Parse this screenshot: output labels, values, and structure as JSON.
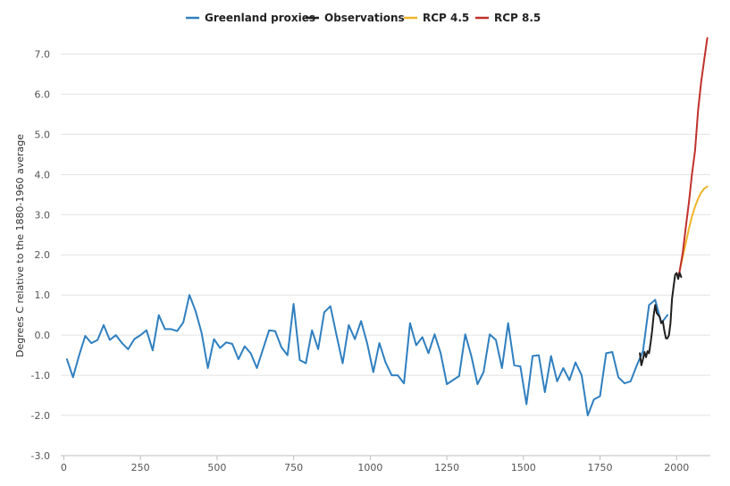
{
  "chart_data": {
    "type": "line",
    "title": "",
    "xlabel": "",
    "ylabel": "Degrees C relative to the 1880-1960 average",
    "xlim": [
      -10,
      2110
    ],
    "ylim": [
      -3.0,
      7.5
    ],
    "xticks": [
      0,
      250,
      500,
      750,
      1000,
      1250,
      1500,
      1750,
      2000
    ],
    "xtick_labels": [
      "0",
      "250",
      "500",
      "750",
      "1000",
      "1250",
      "1500",
      "1750",
      "2000"
    ],
    "yticks": [
      -3,
      -2,
      -1,
      0,
      1,
      2,
      3,
      4,
      5,
      6,
      7
    ],
    "ytick_labels": [
      "-3.0",
      "-2.0",
      "-1.0",
      "0.0",
      "1.0",
      "2.0",
      "3.0",
      "4.0",
      "5.0",
      "6.0",
      "7.0"
    ],
    "grid": true,
    "legend_position": "top",
    "series": [
      {
        "name": "Greenland proxies",
        "color": "#2f7fbf",
        "x": [
          10,
          30,
          50,
          70,
          90,
          110,
          130,
          150,
          170,
          190,
          210,
          230,
          250,
          270,
          290,
          310,
          330,
          350,
          370,
          390,
          410,
          430,
          450,
          470,
          490,
          510,
          530,
          550,
          570,
          590,
          610,
          630,
          650,
          670,
          690,
          710,
          730,
          750,
          770,
          790,
          810,
          830,
          850,
          870,
          890,
          910,
          930,
          950,
          970,
          990,
          1010,
          1030,
          1050,
          1070,
          1090,
          1110,
          1130,
          1150,
          1170,
          1190,
          1210,
          1230,
          1250,
          1270,
          1290,
          1310,
          1330,
          1350,
          1370,
          1390,
          1410,
          1430,
          1450,
          1470,
          1490,
          1510,
          1530,
          1550,
          1570,
          1590,
          1610,
          1630,
          1650,
          1670,
          1690,
          1710,
          1730,
          1750,
          1770,
          1790,
          1810,
          1830,
          1850,
          1870,
          1890,
          1910,
          1930,
          1950,
          1970
        ],
        "values": [
          -0.6,
          -1.05,
          -0.5,
          -0.02,
          -0.2,
          -0.12,
          0.25,
          -0.12,
          0.0,
          -0.2,
          -0.35,
          -0.1,
          0.0,
          0.12,
          -0.38,
          0.5,
          0.15,
          0.15,
          0.1,
          0.32,
          1.0,
          0.6,
          0.05,
          -0.82,
          -0.1,
          -0.32,
          -0.18,
          -0.22,
          -0.6,
          -0.28,
          -0.45,
          -0.82,
          -0.35,
          0.12,
          0.1,
          -0.3,
          -0.5,
          0.78,
          -0.62,
          -0.7,
          0.12,
          -0.35,
          0.57,
          0.72,
          0.0,
          -0.7,
          0.25,
          -0.1,
          0.35,
          -0.2,
          -0.92,
          -0.2,
          -0.68,
          -1.0,
          -1.0,
          -1.2,
          0.3,
          -0.25,
          -0.05,
          -0.45,
          0.02,
          -0.45,
          -1.22,
          -1.12,
          -1.02,
          0.02,
          -0.52,
          -1.22,
          -0.92,
          0.02,
          -0.12,
          -0.82,
          0.3,
          -0.75,
          -0.78,
          -1.72,
          -0.52,
          -0.5,
          -1.42,
          -0.52,
          -1.15,
          -0.82,
          -1.12,
          -0.68,
          -1.0,
          -2.0,
          -1.6,
          -1.52,
          -0.45,
          -0.42,
          -1.05,
          -1.2,
          -1.15,
          -0.75,
          -0.4,
          0.75,
          0.88,
          0.3,
          0.5
        ]
      },
      {
        "name": "Observations",
        "color": "#1f1f1f",
        "x": [
          1880,
          1885,
          1890,
          1895,
          1900,
          1905,
          1910,
          1915,
          1920,
          1925,
          1930,
          1935,
          1940,
          1945,
          1950,
          1955,
          1960,
          1965,
          1970,
          1975,
          1980,
          1985,
          1990,
          1995,
          2000,
          2005,
          2010,
          2015
        ],
        "values": [
          -0.45,
          -0.75,
          -0.6,
          -0.42,
          -0.55,
          -0.4,
          -0.45,
          -0.2,
          0.1,
          0.5,
          0.75,
          0.55,
          0.5,
          0.45,
          0.3,
          0.35,
          0.1,
          -0.08,
          -0.08,
          0.0,
          0.3,
          0.9,
          1.2,
          1.5,
          1.55,
          1.4,
          1.55,
          1.45
        ]
      },
      {
        "name": "RCP 4.5",
        "color": "#f0b429",
        "x": [
          2005,
          2010,
          2020,
          2030,
          2040,
          2050,
          2060,
          2070,
          2080,
          2090,
          2100
        ],
        "values": [
          1.45,
          1.6,
          1.95,
          2.3,
          2.65,
          2.95,
          3.2,
          3.4,
          3.55,
          3.65,
          3.7
        ]
      },
      {
        "name": "RCP 8.5",
        "color": "#c0312b",
        "x": [
          2005,
          2010,
          2020,
          2030,
          2040,
          2050,
          2060,
          2070,
          2080,
          2090,
          2100
        ],
        "values": [
          1.45,
          1.6,
          2.05,
          2.7,
          3.3,
          4.0,
          4.6,
          5.6,
          6.3,
          6.85,
          7.4
        ]
      }
    ]
  }
}
